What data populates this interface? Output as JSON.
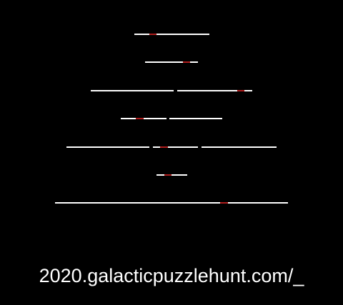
{
  "url_text": "2020.galacticpuzzlehunt.com/_",
  "colors": {
    "background": "#000000",
    "blank": "#ffffff",
    "highlight": "#b01c1c"
  },
  "rows": [
    {
      "words": [
        {
          "length": 10,
          "highlight": [
            2
          ]
        }
      ]
    },
    {
      "words": [
        {
          "length": 7,
          "highlight": [
            5
          ]
        }
      ]
    },
    {
      "words": [
        {
          "length": 11,
          "highlight": []
        },
        {
          "length": 10,
          "highlight": [
            8
          ]
        }
      ]
    },
    {
      "words": [
        {
          "length": 6,
          "highlight": [
            2
          ]
        },
        {
          "length": 7,
          "highlight": []
        }
      ]
    },
    {
      "words": [
        {
          "length": 11,
          "highlight": []
        },
        {
          "length": 6,
          "highlight": [
            1
          ]
        },
        {
          "length": 10,
          "highlight": []
        }
      ]
    },
    {
      "words": [
        {
          "length": 4,
          "highlight": [
            1
          ]
        }
      ]
    },
    {
      "words": [
        {
          "length": 31,
          "highlight": [
            22
          ]
        }
      ]
    }
  ]
}
